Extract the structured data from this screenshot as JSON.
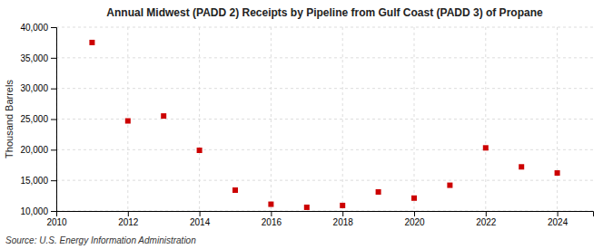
{
  "chart_data": {
    "type": "scatter",
    "title": "Annual Midwest (PADD 2) Receipts by Pipeline from Gulf Coast (PADD 3) of Propane",
    "ylabel": "Thousand Barrels",
    "annotation": "Source: U.S. Energy Information Administration",
    "x": [
      2011,
      2012,
      2013,
      2014,
      2015,
      2016,
      2017,
      2018,
      2019,
      2020,
      2021,
      2022,
      2023,
      2024
    ],
    "values": [
      37500,
      24700,
      25500,
      19900,
      13400,
      11100,
      10600,
      10900,
      13100,
      12100,
      14200,
      20300,
      17200,
      16200
    ],
    "color": "#cc0000",
    "marker": "square",
    "xlim": [
      2010,
      2025
    ],
    "xticks": [
      2010,
      2012,
      2014,
      2016,
      2018,
      2020,
      2022,
      2024
    ],
    "ylim": [
      10000,
      40000
    ],
    "yticks": [
      {
        "value": 10000,
        "label": "10,000"
      },
      {
        "value": 15000,
        "label": "15,000"
      },
      {
        "value": 20000,
        "label": "20,000"
      },
      {
        "value": 25000,
        "label": "25,000"
      },
      {
        "value": 30000,
        "label": "30,000"
      },
      {
        "value": 35000,
        "label": "35,000"
      },
      {
        "value": 40000,
        "label": "40,000"
      }
    ],
    "grid": true
  }
}
